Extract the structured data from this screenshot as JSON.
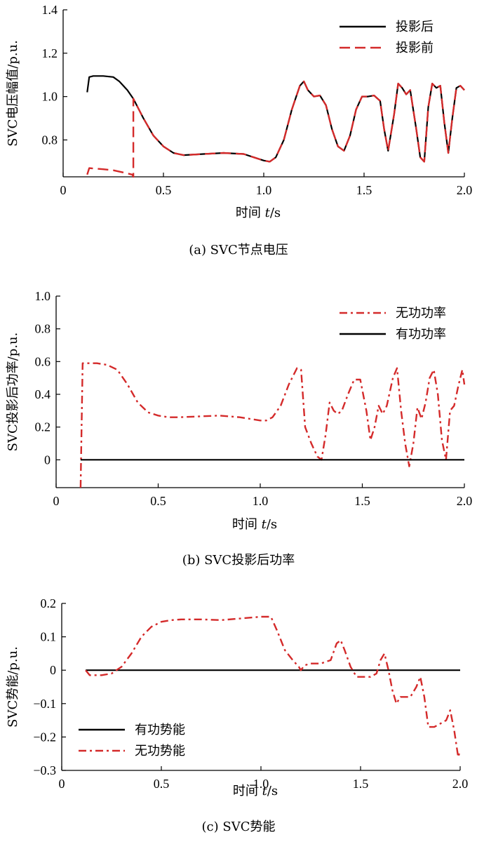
{
  "chart_data": [
    {
      "type": "line",
      "caption": "(a) SVC节点电压",
      "xlabel_text": "时间",
      "xlabel_var": "t",
      "xlabel_unit": "/s",
      "ylabel": "SVC电压幅值/p.u.",
      "xlim": [
        0,
        2.0
      ],
      "ylim": [
        0.63,
        1.4
      ],
      "xticks": [
        0,
        0.5,
        1.0,
        1.5,
        2.0
      ],
      "xtick_labels": [
        "0",
        "0.5",
        "1.0",
        "1.5",
        "2.0"
      ],
      "yticks": [
        0.8,
        1.0,
        1.2,
        1.4
      ],
      "ytick_labels": [
        "0.8",
        "1.0",
        "1.2",
        "1.4"
      ],
      "legend_position": "top-right",
      "series": [
        {
          "name": "投影后",
          "color": "#000000",
          "style": "solid",
          "x": [
            0.12,
            0.13,
            0.15,
            0.2,
            0.25,
            0.28,
            0.32,
            0.35,
            0.4,
            0.45,
            0.5,
            0.55,
            0.6,
            0.7,
            0.8,
            0.9,
            0.95,
            1.0,
            1.03,
            1.06,
            1.1,
            1.14,
            1.18,
            1.2,
            1.22,
            1.25,
            1.28,
            1.31,
            1.34,
            1.37,
            1.4,
            1.43,
            1.46,
            1.49,
            1.52,
            1.55,
            1.58,
            1.6,
            1.62,
            1.65,
            1.67,
            1.69,
            1.71,
            1.73,
            1.76,
            1.78,
            1.8,
            1.82,
            1.84,
            1.86,
            1.88,
            1.9,
            1.92,
            1.94,
            1.96,
            1.98,
            2.0
          ],
          "y": [
            1.02,
            1.09,
            1.095,
            1.095,
            1.09,
            1.07,
            1.03,
            0.99,
            0.9,
            0.82,
            0.77,
            0.74,
            0.73,
            0.735,
            0.74,
            0.735,
            0.72,
            0.705,
            0.7,
            0.72,
            0.8,
            0.94,
            1.05,
            1.07,
            1.03,
            1.0,
            1.005,
            0.96,
            0.85,
            0.77,
            0.75,
            0.82,
            0.94,
            1.0,
            1.0,
            1.005,
            0.98,
            0.85,
            0.75,
            0.92,
            1.06,
            1.04,
            1.01,
            1.03,
            0.85,
            0.72,
            0.7,
            0.95,
            1.06,
            1.04,
            1.05,
            0.88,
            0.74,
            0.9,
            1.04,
            1.05,
            1.03
          ]
        },
        {
          "name": "投影前",
          "color": "#d42a2a",
          "style": "dashed",
          "x": [
            0.12,
            0.13,
            0.2,
            0.25,
            0.3,
            0.345,
            0.35,
            0.35,
            0.4,
            0.45,
            0.5,
            0.55,
            0.6,
            0.7,
            0.8,
            0.9,
            0.95,
            1.0,
            1.03,
            1.06,
            1.1,
            1.14,
            1.18,
            1.2,
            1.22,
            1.25,
            1.28,
            1.31,
            1.34,
            1.37,
            1.4,
            1.43,
            1.46,
            1.49,
            1.52,
            1.55,
            1.58,
            1.6,
            1.62,
            1.65,
            1.67,
            1.69,
            1.71,
            1.73,
            1.76,
            1.78,
            1.8,
            1.82,
            1.84,
            1.86,
            1.88,
            1.9,
            1.92,
            1.94,
            1.96,
            1.98,
            2.0
          ],
          "y": [
            0.64,
            0.67,
            0.665,
            0.66,
            0.65,
            0.64,
            0.63,
            0.99,
            0.9,
            0.82,
            0.77,
            0.74,
            0.73,
            0.735,
            0.74,
            0.735,
            0.72,
            0.705,
            0.7,
            0.72,
            0.8,
            0.94,
            1.05,
            1.07,
            1.03,
            1.0,
            1.005,
            0.96,
            0.85,
            0.77,
            0.75,
            0.82,
            0.94,
            1.0,
            1.0,
            1.005,
            0.98,
            0.85,
            0.75,
            0.92,
            1.06,
            1.04,
            1.01,
            1.03,
            0.85,
            0.72,
            0.7,
            0.95,
            1.06,
            1.04,
            1.05,
            0.88,
            0.74,
            0.9,
            1.04,
            1.05,
            1.03
          ]
        }
      ]
    },
    {
      "type": "line",
      "caption": "(b) SVC投影后功率",
      "xlabel_text": "时间",
      "xlabel_var": "t",
      "xlabel_unit": "/s",
      "ylabel": "SVC投影后功率/p.u.",
      "xlim": [
        0,
        2.0
      ],
      "ylim": [
        -0.17,
        1.0
      ],
      "xticks": [
        0,
        0.5,
        1.0,
        1.5,
        2.0
      ],
      "xtick_labels": [
        "0",
        "0.5",
        "1.0",
        "1.5",
        "2.0"
      ],
      "yticks": [
        0,
        0.2,
        0.4,
        0.6,
        0.8,
        1.0
      ],
      "ytick_labels": [
        "0",
        "0.2",
        "0.4",
        "0.6",
        "0.8",
        "1.0"
      ],
      "legend_position": "top-right",
      "series": [
        {
          "name": "无功功率",
          "color": "#d42a2a",
          "style": "dashdot",
          "x": [
            0.12,
            0.13,
            0.14,
            0.2,
            0.25,
            0.3,
            0.35,
            0.4,
            0.45,
            0.5,
            0.55,
            0.6,
            0.7,
            0.8,
            0.9,
            0.95,
            1.0,
            1.03,
            1.06,
            1.1,
            1.14,
            1.18,
            1.2,
            1.22,
            1.25,
            1.28,
            1.3,
            1.32,
            1.34,
            1.36,
            1.38,
            1.4,
            1.43,
            1.46,
            1.49,
            1.52,
            1.54,
            1.56,
            1.58,
            1.6,
            1.62,
            1.65,
            1.67,
            1.69,
            1.71,
            1.73,
            1.75,
            1.77,
            1.79,
            1.81,
            1.83,
            1.85,
            1.87,
            1.89,
            1.91,
            1.93,
            1.95,
            1.97,
            1.99,
            2.0
          ],
          "y": [
            -0.17,
            0.59,
            0.59,
            0.59,
            0.58,
            0.55,
            0.46,
            0.35,
            0.29,
            0.27,
            0.26,
            0.26,
            0.265,
            0.27,
            0.26,
            0.25,
            0.24,
            0.24,
            0.26,
            0.33,
            0.46,
            0.56,
            0.55,
            0.2,
            0.1,
            0.02,
            0.0,
            0.15,
            0.35,
            0.3,
            0.28,
            0.3,
            0.4,
            0.49,
            0.49,
            0.3,
            0.12,
            0.2,
            0.33,
            0.28,
            0.33,
            0.5,
            0.56,
            0.3,
            0.1,
            -0.04,
            0.1,
            0.32,
            0.25,
            0.35,
            0.5,
            0.55,
            0.4,
            0.12,
            0.0,
            0.3,
            0.33,
            0.45,
            0.55,
            0.46
          ]
        },
        {
          "name": "有功功率",
          "color": "#000000",
          "style": "solid",
          "x": [
            0.12,
            2.0
          ],
          "y": [
            0,
            0
          ]
        }
      ]
    },
    {
      "type": "line",
      "caption": "(c) SVC势能",
      "xlabel_text": "时间",
      "xlabel_var": "t",
      "xlabel_unit": "/s",
      "ylabel": "SVC势能/p.u.",
      "xlim": [
        0,
        2.0
      ],
      "ylim": [
        -0.3,
        0.2
      ],
      "xticks": [
        0,
        0.5,
        1.0,
        1.5,
        2.0
      ],
      "xtick_labels": [
        "0",
        "0.5",
        "1.0",
        "1.5",
        "2.0"
      ],
      "yticks": [
        -0.3,
        -0.2,
        -0.1,
        0,
        0.1,
        0.2
      ],
      "ytick_labels": [
        "−0.3",
        "−0.2",
        "−0.1",
        "0",
        "0.1",
        "0.2"
      ],
      "legend_position": "bottom-left",
      "series": [
        {
          "name": "有功势能",
          "color": "#000000",
          "style": "solid",
          "x": [
            0.12,
            2.0
          ],
          "y": [
            0,
            0
          ]
        },
        {
          "name": "无功势能",
          "color": "#d42a2a",
          "style": "dashdot",
          "x": [
            0.12,
            0.14,
            0.2,
            0.25,
            0.3,
            0.35,
            0.4,
            0.45,
            0.5,
            0.55,
            0.6,
            0.7,
            0.8,
            0.9,
            1.0,
            1.05,
            1.08,
            1.12,
            1.16,
            1.19,
            1.2,
            1.22,
            1.25,
            1.3,
            1.35,
            1.38,
            1.4,
            1.42,
            1.45,
            1.48,
            1.5,
            1.55,
            1.58,
            1.6,
            1.62,
            1.64,
            1.66,
            1.68,
            1.7,
            1.75,
            1.78,
            1.8,
            1.82,
            1.84,
            1.87,
            1.9,
            1.93,
            1.95,
            1.97,
            1.99,
            2.0
          ],
          "y": [
            0.0,
            -0.015,
            -0.015,
            -0.01,
            0.01,
            0.05,
            0.1,
            0.13,
            0.145,
            0.15,
            0.152,
            0.152,
            0.15,
            0.155,
            0.16,
            0.16,
            0.12,
            0.06,
            0.03,
            0.01,
            0.0,
            0.015,
            0.02,
            0.02,
            0.03,
            0.08,
            0.09,
            0.06,
            0.01,
            -0.02,
            -0.02,
            -0.02,
            -0.01,
            0.03,
            0.05,
            0.0,
            -0.06,
            -0.1,
            -0.08,
            -0.08,
            -0.05,
            -0.02,
            -0.08,
            -0.17,
            -0.17,
            -0.16,
            -0.15,
            -0.12,
            -0.18,
            -0.26,
            -0.24
          ]
        }
      ]
    }
  ]
}
